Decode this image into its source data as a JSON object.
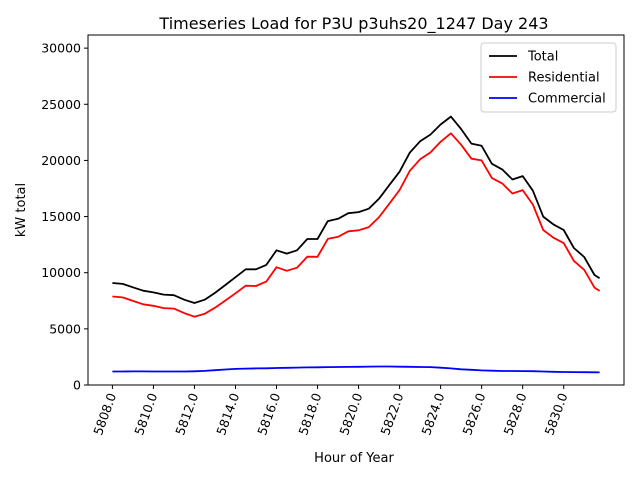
{
  "chart_data": {
    "type": "line",
    "title": "Timeseries Load for P3U p3uhs20_1247  Day 243",
    "xlabel": "Hour of Year",
    "ylabel": "kW total",
    "xlim": [
      5806.81,
      5832.94
    ],
    "ylim": [
      0,
      31170
    ],
    "xticks": [
      5808,
      5810,
      5812,
      5814,
      5816,
      5818,
      5820,
      5822,
      5824,
      5826,
      5828,
      5830
    ],
    "xtick_labels": [
      "5808.0",
      "5810.0",
      "5812.0",
      "5814.0",
      "5816.0",
      "5818.0",
      "5820.0",
      "5822.0",
      "5824.0",
      "5826.0",
      "5828.0",
      "5830.0"
    ],
    "yticks": [
      0,
      5000,
      10000,
      15000,
      20000,
      25000,
      30000
    ],
    "ytick_labels": [
      "0",
      "5000",
      "10000",
      "15000",
      "20000",
      "25000",
      "30000"
    ],
    "grid": false,
    "legend_position": "top-right",
    "x": [
      5808,
      5808.5,
      5809,
      5809.5,
      5810,
      5810.5,
      5811,
      5811.5,
      5812,
      5812.5,
      5813,
      5813.5,
      5814,
      5814.5,
      5815,
      5815.5,
      5816,
      5816.5,
      5817,
      5817.5,
      5818,
      5818.5,
      5819,
      5819.5,
      5820,
      5820.5,
      5821,
      5821.5,
      5822,
      5822.5,
      5823,
      5823.5,
      5824,
      5824.5,
      5825,
      5825.5,
      5826,
      5826.5,
      5827,
      5827.5,
      5828,
      5828.5,
      5829,
      5829.5,
      5830,
      5830.5,
      5831,
      5831.5,
      5831.75
    ],
    "series": [
      {
        "name": "Total",
        "color": "#000000",
        "values": [
          9080,
          9000,
          8700,
          8400,
          8250,
          8050,
          8000,
          7600,
          7300,
          7600,
          8200,
          8900,
          9600,
          10300,
          10300,
          10700,
          12000,
          11700,
          12000,
          13000,
          13000,
          14600,
          14800,
          15300,
          15400,
          15700,
          16600,
          17800,
          19000,
          20700,
          21700,
          22300,
          23200,
          23900,
          22800,
          21500,
          21300,
          19700,
          19200,
          18300,
          18600,
          17300,
          15000,
          14300,
          13800,
          12200,
          11400,
          9800,
          9500
        ]
      },
      {
        "name": "Residential",
        "color": "#ff0000",
        "values": [
          7880,
          7800,
          7490,
          7190,
          7050,
          6850,
          6800,
          6400,
          6080,
          6340,
          6880,
          7520,
          8170,
          8840,
          8820,
          9210,
          10490,
          10170,
          10450,
          11430,
          11420,
          13010,
          13200,
          13690,
          13780,
          14060,
          14950,
          16150,
          17370,
          19080,
          20100,
          20710,
          21660,
          22420,
          21400,
          20150,
          20000,
          18430,
          17950,
          17050,
          17360,
          16070,
          13800,
          13120,
          12640,
          11050,
          10260,
          8670,
          8380
        ]
      },
      {
        "name": "Commercial",
        "color": "#0000ff",
        "values": [
          1200,
          1200,
          1210,
          1210,
          1200,
          1200,
          1200,
          1200,
          1220,
          1260,
          1320,
          1380,
          1430,
          1460,
          1480,
          1490,
          1510,
          1530,
          1550,
          1570,
          1580,
          1590,
          1600,
          1610,
          1620,
          1640,
          1650,
          1650,
          1630,
          1620,
          1600,
          1590,
          1540,
          1480,
          1400,
          1350,
          1300,
          1270,
          1250,
          1250,
          1240,
          1230,
          1200,
          1180,
          1160,
          1150,
          1140,
          1130,
          1120
        ]
      }
    ]
  }
}
